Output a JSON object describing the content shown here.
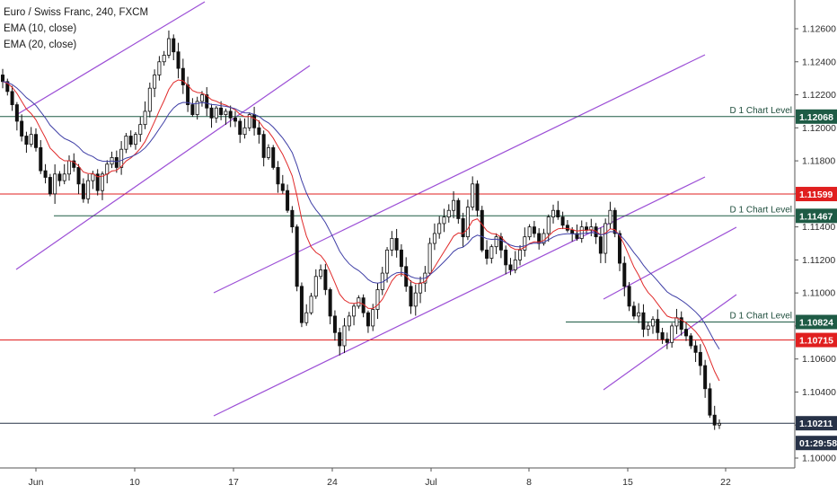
{
  "chart_data": {
    "type": "candlestick",
    "title": "Euro / Swiss Franc, 240, FXCM",
    "indicators": [
      "EMA (10, close)",
      "EMA (20, close)"
    ],
    "x_tick_labels": [
      "Jun",
      "10",
      "17",
      "24",
      "Jul",
      "8",
      "15",
      "22"
    ],
    "y_tick_labels": [
      "1.12600",
      "1.12400",
      "1.12200",
      "1.12000",
      "1.11800",
      "1.11600",
      "1.11400",
      "1.11200",
      "1.11000",
      "1.10800",
      "1.10600",
      "1.10400",
      "1.10200",
      "1.10000"
    ],
    "ylim": [
      1.0996,
      1.1272
    ],
    "horizontal_levels": [
      {
        "price": 1.12068,
        "label": "D 1 Chart Level",
        "tag": "1.12068",
        "color": "#1e5b45"
      },
      {
        "price": 1.11599,
        "label": "",
        "tag": "1.11599",
        "color": "#e01f1f"
      },
      {
        "price": 1.11467,
        "label": "D 1 Chart Level",
        "tag": "1.11467",
        "color": "#1e5b45"
      },
      {
        "price": 1.10824,
        "label": "D 1 Chart Level",
        "tag": "1.10824",
        "color": "#1e5b45"
      },
      {
        "price": 1.10715,
        "label": "",
        "tag": "1.10715",
        "color": "#e01f1f"
      },
      {
        "price": 1.10211,
        "label": "",
        "tag": "1.10211",
        "color": "#273247"
      }
    ],
    "countdown": "01:29:58",
    "channel_color": "#9c4fd6",
    "ema10_color": "#e02a2a",
    "ema20_color": "#3f3fa6",
    "closes": [
      1.1228,
      1.1222,
      1.1214,
      1.1204,
      1.1195,
      1.119,
      1.1196,
      1.1188,
      1.1174,
      1.117,
      1.116,
      1.1172,
      1.1168,
      1.1172,
      1.118,
      1.1176,
      1.1166,
      1.1157,
      1.1168,
      1.1172,
      1.1162,
      1.1172,
      1.1178,
      1.1182,
      1.1176,
      1.1187,
      1.1195,
      1.119,
      1.1196,
      1.1202,
      1.121,
      1.1224,
      1.1232,
      1.124,
      1.1244,
      1.1254,
      1.1246,
      1.1236,
      1.1226,
      1.1214,
      1.1208,
      1.1216,
      1.122,
      1.1212,
      1.1206,
      1.1212,
      1.1208,
      1.121,
      1.1206,
      1.1204,
      1.1196,
      1.12,
      1.1208,
      1.12,
      1.1196,
      1.1182,
      1.1188,
      1.1176,
      1.1166,
      1.1162,
      1.115,
      1.114,
      1.1104,
      1.1082,
      1.1088,
      1.1098,
      1.111,
      1.1114,
      1.1102,
      1.1086,
      1.1076,
      1.1068,
      1.108,
      1.1086,
      1.1092,
      1.1097,
      1.1088,
      1.108,
      1.109,
      1.1102,
      1.1112,
      1.1126,
      1.1133,
      1.1126,
      1.1116,
      1.1104,
      1.1092,
      1.11,
      1.1106,
      1.1112,
      1.113,
      1.1136,
      1.1142,
      1.1146,
      1.115,
      1.1156,
      1.1145,
      1.1134,
      1.1152,
      1.1166,
      1.115,
      1.1126,
      1.1121,
      1.1128,
      1.1134,
      1.1126,
      1.1117,
      1.1114,
      1.112,
      1.1126,
      1.1134,
      1.114,
      1.1136,
      1.113,
      1.1136,
      1.1146,
      1.115,
      1.1146,
      1.1141,
      1.1138,
      1.1136,
      1.1133,
      1.114,
      1.1138,
      1.114,
      1.1134,
      1.1124,
      1.1142,
      1.115,
      1.1136,
      1.1118,
      1.1104,
      1.1092,
      1.1086,
      1.1088,
      1.1078,
      1.108,
      1.1084,
      1.1076,
      1.1072,
      1.107,
      1.108,
      1.1085,
      1.1078,
      1.1074,
      1.1068,
      1.1064,
      1.1056,
      1.1042,
      1.1026,
      1.102,
      1.1021
    ]
  }
}
